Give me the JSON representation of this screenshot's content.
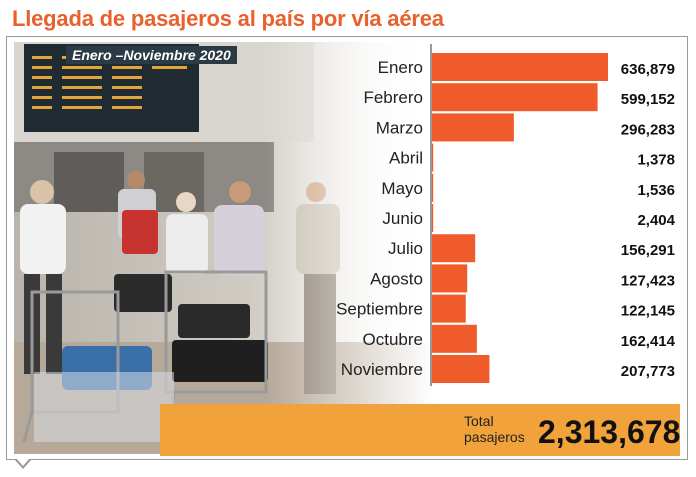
{
  "header": {
    "title": "Llegada de pasajeros al país por vía aérea",
    "subtitle": "Enero –Noviembre 2020"
  },
  "colors": {
    "title": "#e8612c",
    "bar": "#ef5b2b",
    "total_band": "#f2a23a"
  },
  "chart_data": {
    "type": "bar",
    "orientation": "horizontal",
    "title": "Llegada de pasajeros al país por vía aérea",
    "subtitle": "Enero –Noviembre 2020",
    "categories": [
      "Enero",
      "Febrero",
      "Marzo",
      "Abril",
      "Mayo",
      "Junio",
      "Julio",
      "Agosto",
      "Septiembre",
      "Octubre",
      "Noviembre"
    ],
    "values": [
      636879,
      599152,
      296283,
      1378,
      1536,
      2404,
      156291,
      127423,
      122145,
      162414,
      207773
    ],
    "value_labels": [
      "636,879",
      "599,152",
      "296,283",
      "1,378",
      "1,536",
      "2,404",
      "156,291",
      "127,423",
      "122,145",
      "162,414",
      "207,773"
    ],
    "xlim": [
      0,
      636879
    ],
    "grid": false,
    "legend": "none"
  },
  "total": {
    "label": "Total pasajeros",
    "value": "2,313,678"
  }
}
